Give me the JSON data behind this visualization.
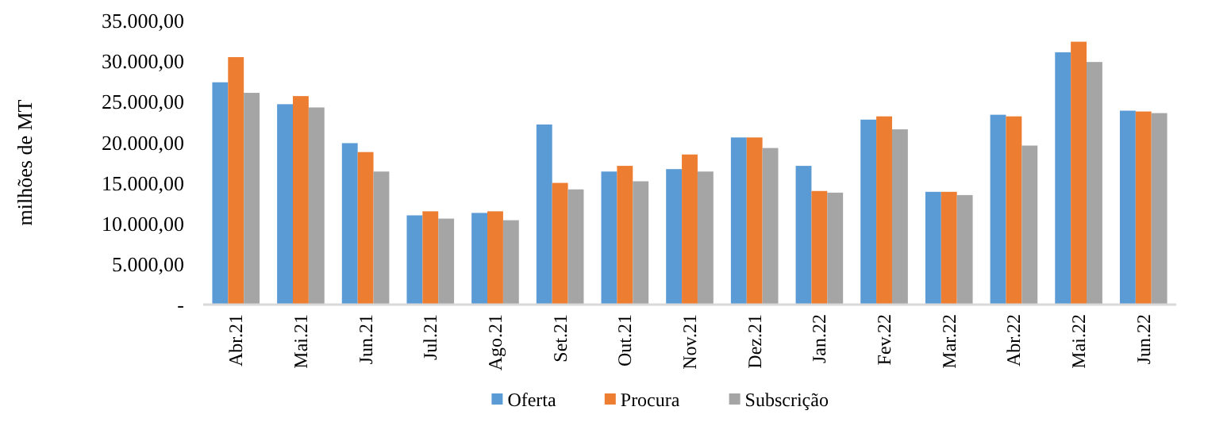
{
  "chart_data": {
    "type": "bar",
    "ylabel": "milhões de MT",
    "categories": [
      "Abr.21",
      "Mai.21",
      "Jun.21",
      "Jul.21",
      "Ago.21",
      "Set.21",
      "Out.21",
      "Nov.21",
      "Dez.21",
      "Jan.22",
      "Fev.22",
      "Mar.22",
      "Abr.22",
      "Mai.22",
      "Jun.22"
    ],
    "series": [
      {
        "name": "Oferta",
        "color": "#5b9bd5",
        "values": [
          27400,
          24700,
          19900,
          11000,
          11300,
          22200,
          16400,
          16700,
          20600,
          17100,
          22800,
          13900,
          23400,
          31100,
          23900
        ]
      },
      {
        "name": "Procura",
        "color": "#ed7d31",
        "values": [
          30500,
          25700,
          18800,
          11500,
          11500,
          15000,
          17100,
          18500,
          20600,
          14000,
          23200,
          13900,
          23200,
          32400,
          23800
        ]
      },
      {
        "name": "Subscrição",
        "color": "#a5a5a5",
        "values": [
          26100,
          24300,
          16400,
          10600,
          10400,
          14200,
          15200,
          16400,
          19300,
          13800,
          21600,
          13500,
          19600,
          29900,
          23600
        ]
      }
    ],
    "ylim": [
      0,
      35000
    ],
    "yticks": [
      {
        "value": 0,
        "label": "-"
      },
      {
        "value": 5000,
        "label": "5.000,00"
      },
      {
        "value": 10000,
        "label": "10.000,00"
      },
      {
        "value": 15000,
        "label": "15.000,00"
      },
      {
        "value": 20000,
        "label": "20.000,00"
      },
      {
        "value": 25000,
        "label": "25.000,00"
      },
      {
        "value": 30000,
        "label": "30.000,00"
      },
      {
        "value": 35000,
        "label": "35.000,00"
      }
    ],
    "grid": false,
    "legend": "bottom"
  }
}
